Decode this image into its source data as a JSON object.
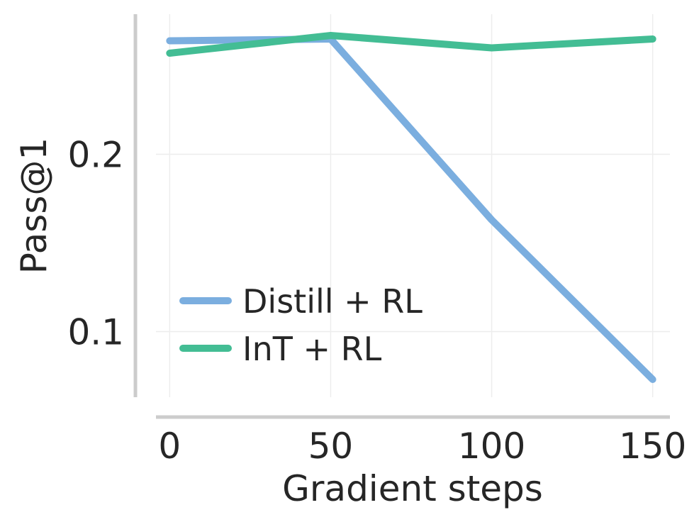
{
  "chart_data": {
    "type": "line",
    "xlabel": "Gradient steps",
    "ylabel": "Pass@1",
    "x": [
      0,
      50,
      100,
      150
    ],
    "xticks": [
      0,
      50,
      100,
      150
    ],
    "xtick_labels": [
      "0",
      "50",
      "100",
      "150"
    ],
    "yticks": [
      0.1,
      0.2
    ],
    "ytick_labels": [
      "0.1",
      "0.2"
    ],
    "xlim": [
      -8,
      158
    ],
    "ylim": [
      0.063,
      0.279
    ],
    "grid": true,
    "legend_position": "lower-left",
    "series": [
      {
        "name": "Distill + RL",
        "color": "#7BAEDF",
        "values": [
          0.264,
          0.265,
          0.163,
          0.073
        ]
      },
      {
        "name": "InT + RL",
        "color": "#43BD94",
        "values": [
          0.257,
          0.267,
          0.26,
          0.265
        ]
      }
    ]
  }
}
